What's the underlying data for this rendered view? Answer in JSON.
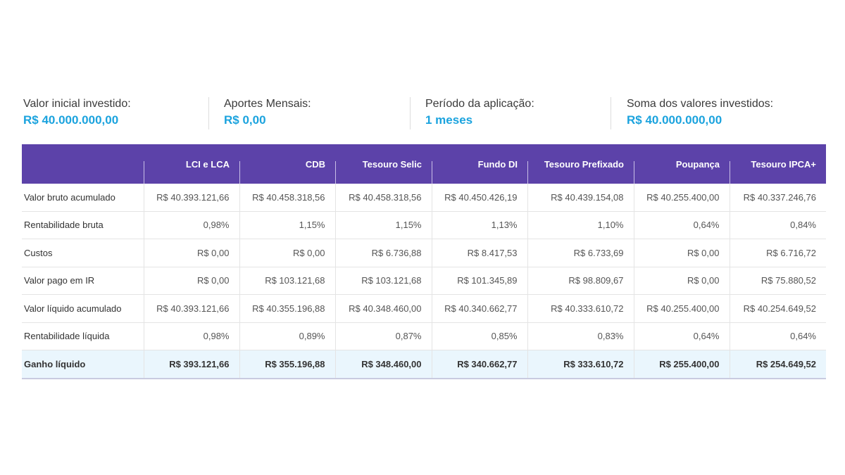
{
  "summary": [
    {
      "label": "Valor inicial investido:",
      "value": "R$ 40.000.000,00"
    },
    {
      "label": "Aportes Mensais:",
      "value": "R$ 0,00"
    },
    {
      "label": "Período da aplicação:",
      "value": "1 meses"
    },
    {
      "label": "Soma dos valores investidos:",
      "value": "R$ 40.000.000,00"
    }
  ],
  "colors": {
    "header": "#5c42a9",
    "accent": "#1ba3de",
    "total_row": "#eaf6fd"
  },
  "table": {
    "columns": [
      "",
      "LCI e LCA",
      "CDB",
      "Tesouro Selic",
      "Fundo DI",
      "Tesouro Prefixado",
      "Poupança",
      "Tesouro IPCA+"
    ],
    "rows": [
      {
        "label": "Valor bruto acumulado",
        "values": [
          "R$ 40.393.121,66",
          "R$ 40.458.318,56",
          "R$ 40.458.318,56",
          "R$ 40.450.426,19",
          "R$ 40.439.154,08",
          "R$ 40.255.400,00",
          "R$ 40.337.246,76"
        ]
      },
      {
        "label": "Rentabilidade bruta",
        "values": [
          "0,98%",
          "1,15%",
          "1,15%",
          "1,13%",
          "1,10%",
          "0,64%",
          "0,84%"
        ]
      },
      {
        "label": "Custos",
        "values": [
          "R$ 0,00",
          "R$ 0,00",
          "R$ 6.736,88",
          "R$ 8.417,53",
          "R$ 6.733,69",
          "R$ 0,00",
          "R$ 6.716,72"
        ]
      },
      {
        "label": "Valor pago em IR",
        "values": [
          "R$ 0,00",
          "R$ 103.121,68",
          "R$ 103.121,68",
          "R$ 101.345,89",
          "R$ 98.809,67",
          "R$ 0,00",
          "R$ 75.880,52"
        ]
      },
      {
        "label": "Valor líquido acumulado",
        "values": [
          "R$ 40.393.121,66",
          "R$ 40.355.196,88",
          "R$ 40.348.460,00",
          "R$ 40.340.662,77",
          "R$ 40.333.610,72",
          "R$ 40.255.400,00",
          "R$ 40.254.649,52"
        ]
      },
      {
        "label": "Rentabilidade líquida",
        "values": [
          "0,98%",
          "0,89%",
          "0,87%",
          "0,85%",
          "0,83%",
          "0,64%",
          "0,64%"
        ]
      },
      {
        "label": "Ganho líquido",
        "total": true,
        "values": [
          "R$ 393.121,66",
          "R$ 355.196,88",
          "R$ 348.460,00",
          "R$ 340.662,77",
          "R$ 333.610,72",
          "R$ 255.400,00",
          "R$ 254.649,52"
        ]
      }
    ]
  }
}
